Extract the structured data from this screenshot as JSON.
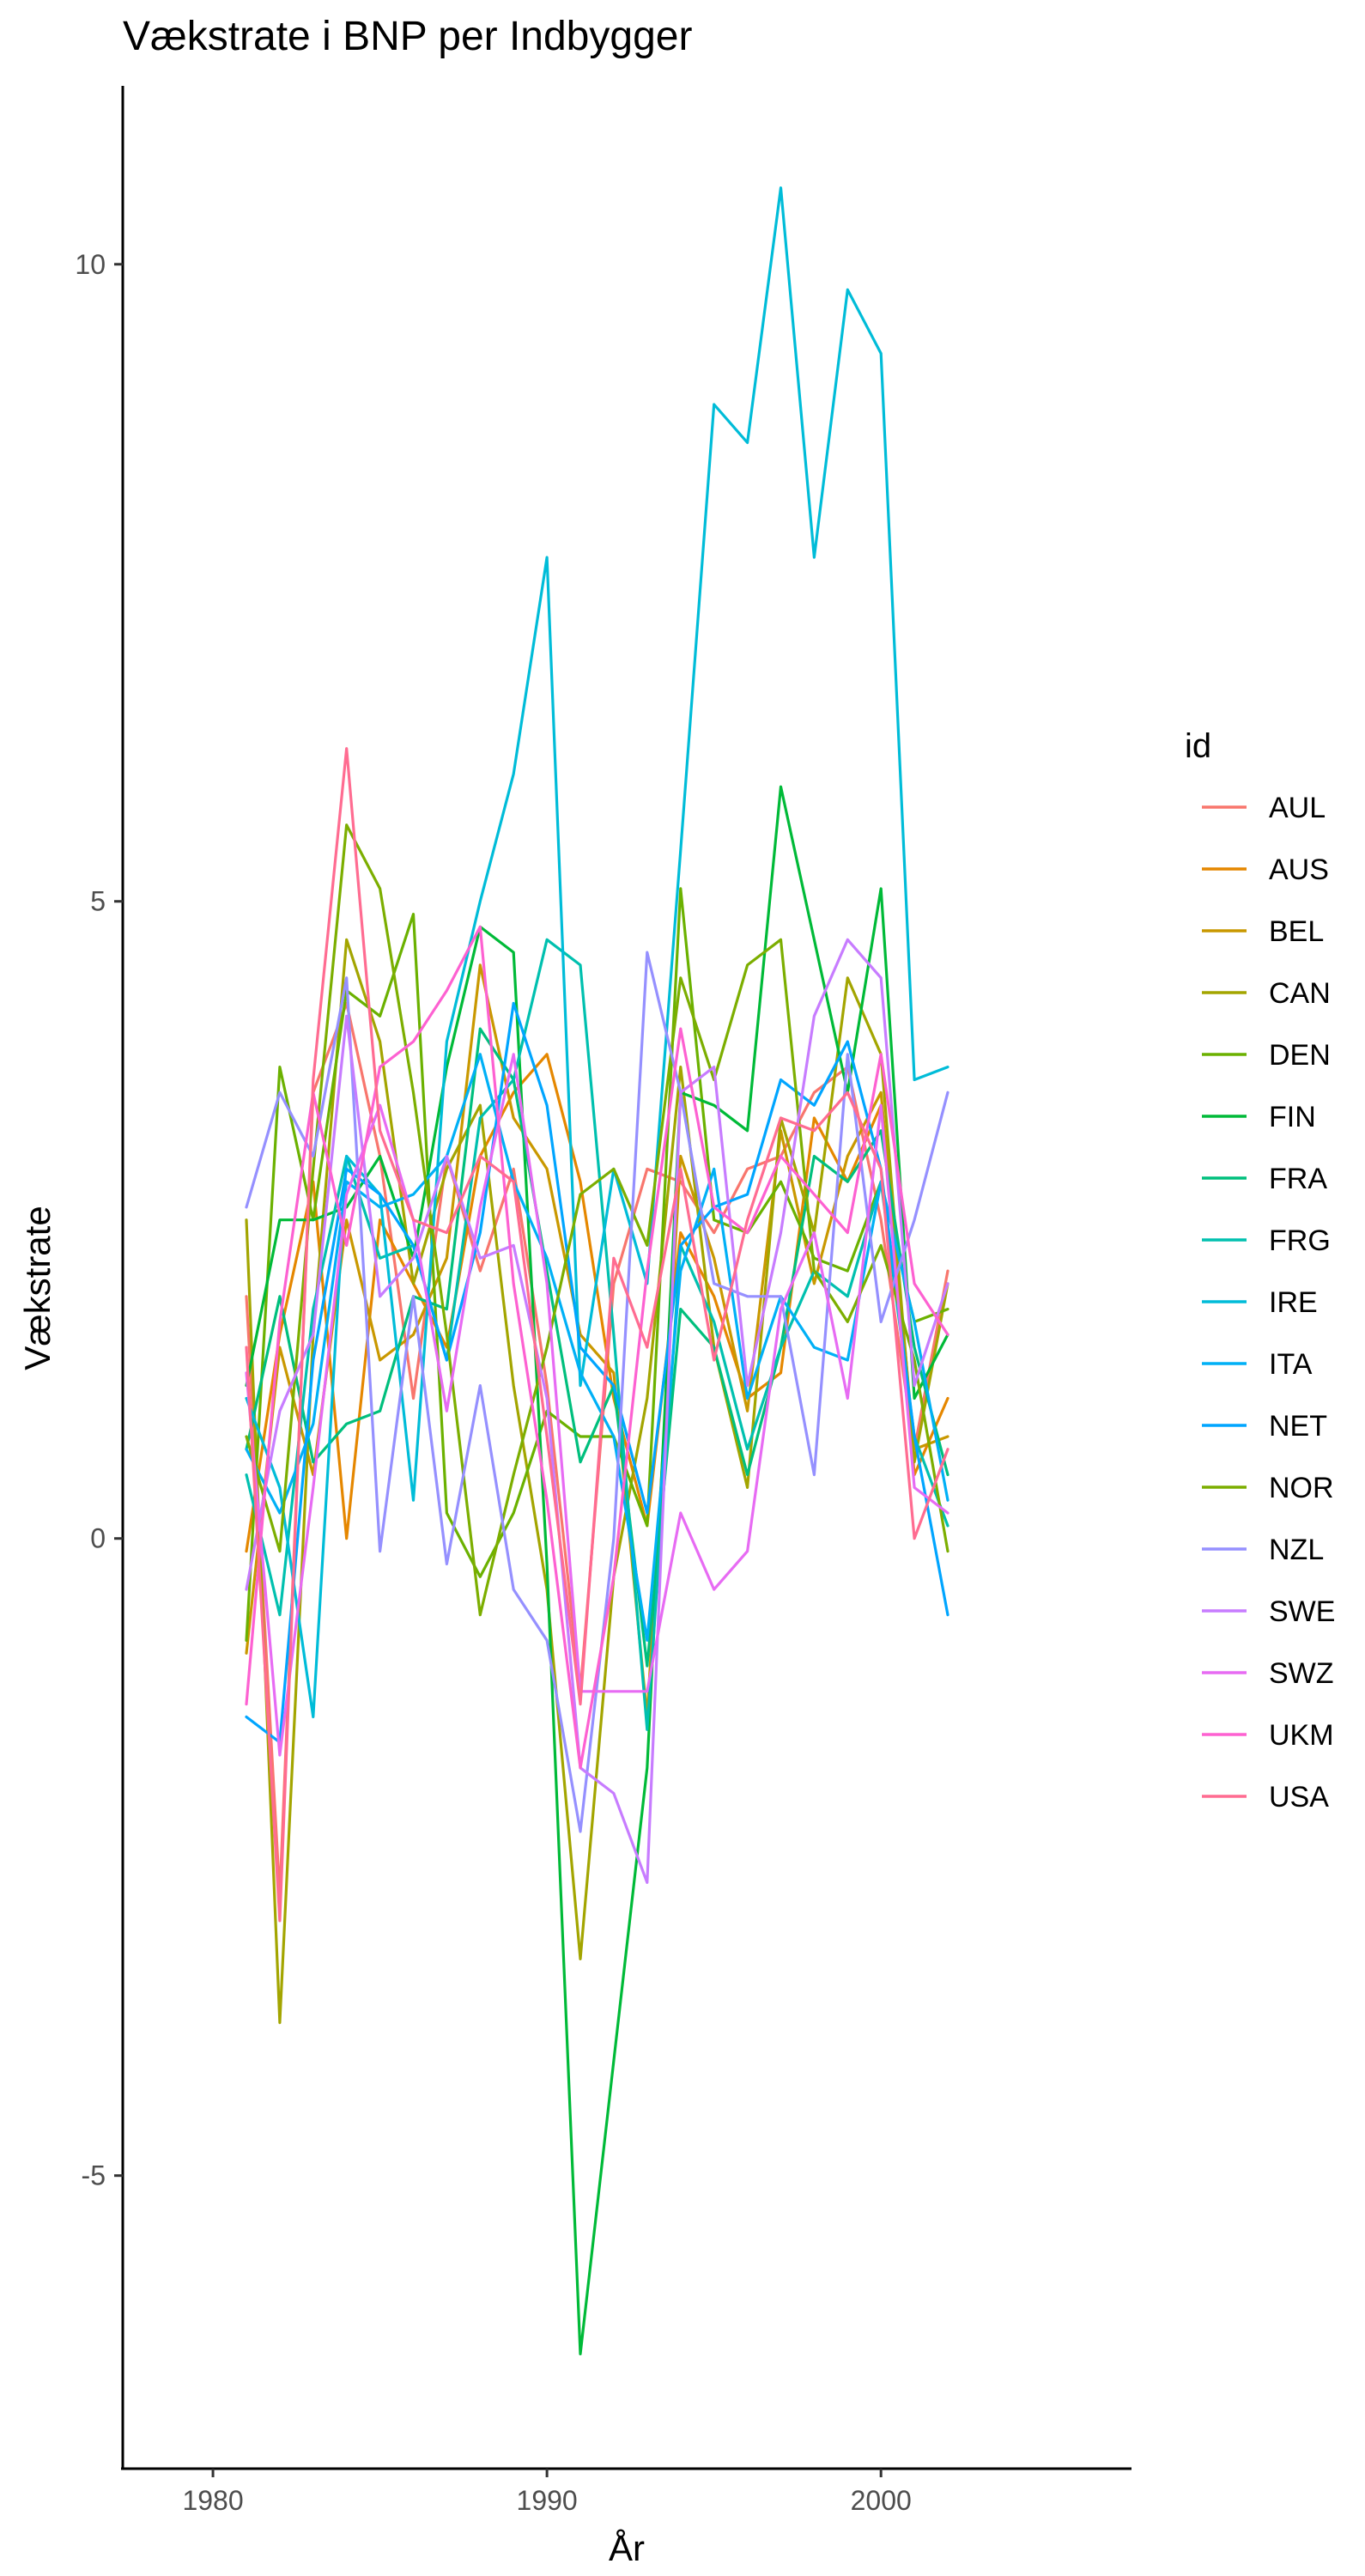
{
  "chart_data": {
    "type": "line",
    "title": "Vækstrate i BNP per Indbygger",
    "xlabel": "År",
    "ylabel": "Vækstrate",
    "xlim": [
      1977.3,
      2007.5
    ],
    "ylim": [
      -7.3,
      11.4
    ],
    "x_ticks": [
      1980,
      1990,
      2000
    ],
    "x_tick_labels": [
      "1980",
      "1990",
      "2000"
    ],
    "y_ticks": [
      -5,
      0,
      5,
      10
    ],
    "y_tick_labels": [
      "-5",
      "0",
      "5",
      "10"
    ],
    "grid": false,
    "legend": {
      "title": "id",
      "position": "right"
    },
    "x": [
      1981,
      1982,
      1983,
      1984,
      1985,
      1986,
      1987,
      1988,
      1989,
      1990,
      1991,
      1992,
      1993,
      1994,
      1995,
      1996,
      1997,
      1998,
      1999,
      2000,
      2001,
      2002
    ],
    "series": [
      {
        "name": "AUL",
        "color": "#F8766D",
        "values": [
          1.9,
          -2.8,
          3.5,
          4.2,
          3.0,
          1.1,
          3.0,
          2.1,
          2.9,
          1.2,
          -1.2,
          2.0,
          2.9,
          2.8,
          2.4,
          2.9,
          3.0,
          3.5,
          3.7,
          2.5,
          0.7,
          2.1
        ]
      },
      {
        "name": "AUS",
        "color": "#E58700",
        "values": [
          -0.1,
          1.6,
          2.8,
          0.0,
          2.5,
          2.0,
          1.5,
          3.0,
          3.5,
          3.8,
          2.8,
          1.1,
          0.1,
          2.4,
          1.9,
          1.1,
          1.3,
          3.3,
          2.8,
          3.4,
          0.5,
          1.1
        ]
      },
      {
        "name": "BEL",
        "color": "#C99800",
        "values": [
          -0.9,
          1.5,
          0.5,
          2.5,
          1.4,
          1.6,
          2.2,
          4.5,
          3.3,
          2.9,
          1.6,
          1.3,
          -1.4,
          3.0,
          2.2,
          1.0,
          3.2,
          2.0,
          3.0,
          3.5,
          0.7,
          0.8
        ]
      },
      {
        "name": "CAN",
        "color": "#A3A500",
        "values": [
          2.5,
          -3.8,
          1.6,
          4.7,
          3.9,
          2.0,
          2.9,
          3.4,
          1.2,
          -0.4,
          -3.3,
          -0.3,
          1.1,
          3.7,
          1.5,
          0.4,
          3.3,
          2.4,
          4.4,
          3.8,
          0.6,
          2.0
        ]
      },
      {
        "name": "DEN",
        "color": "#6BB100",
        "values": [
          -0.8,
          3.7,
          2.5,
          4.3,
          4.1,
          4.9,
          0.2,
          -0.3,
          0.2,
          1.0,
          0.8,
          0.8,
          0.1,
          5.1,
          2.5,
          2.4,
          2.8,
          2.2,
          2.1,
          2.8,
          1.7,
          1.8
        ]
      },
      {
        "name": "FIN",
        "color": "#00BA38",
        "values": [
          1.2,
          2.5,
          2.5,
          2.6,
          3.0,
          2.2,
          3.7,
          4.8,
          4.6,
          -0.2,
          -6.4,
          -4.1,
          -1.8,
          3.5,
          3.4,
          3.2,
          5.9,
          4.7,
          3.5,
          5.1,
          1.1,
          1.6
        ]
      },
      {
        "name": "FRA",
        "color": "#00BF7D",
        "values": [
          0.7,
          1.9,
          0.6,
          0.9,
          1.0,
          1.9,
          1.8,
          4.0,
          3.6,
          2.1,
          0.6,
          1.2,
          -1.0,
          1.8,
          1.5,
          0.5,
          1.5,
          3.0,
          2.8,
          3.2,
          1.5,
          0.5
        ]
      },
      {
        "name": "FRG",
        "color": "#00C0AF",
        "values": [
          0.5,
          -0.6,
          1.8,
          3.0,
          2.2,
          2.3,
          1.4,
          3.3,
          3.6,
          4.7,
          4.5,
          1.6,
          -1.5,
          2.3,
          1.7,
          0.7,
          1.5,
          2.1,
          1.9,
          2.8,
          0.8,
          0.1
        ]
      },
      {
        "name": "IRE",
        "color": "#00BCD8",
        "values": [
          1.1,
          0.4,
          -1.4,
          3.0,
          2.7,
          0.3,
          3.9,
          5.0,
          6.0,
          7.7,
          1.2,
          2.9,
          2.0,
          5.4,
          8.9,
          8.6,
          10.6,
          7.7,
          9.8,
          9.3,
          3.6,
          3.7
        ]
      },
      {
        "name": "ITA",
        "color": "#00B0F6",
        "values": [
          0.7,
          0.2,
          0.9,
          2.8,
          2.6,
          2.7,
          3.0,
          3.8,
          2.8,
          2.2,
          1.3,
          0.8,
          -0.8,
          2.1,
          2.9,
          1.1,
          1.9,
          1.5,
          1.4,
          2.8,
          1.7,
          0.3
        ]
      },
      {
        "name": "NET",
        "color": "#00A5FF",
        "values": [
          -1.4,
          -1.6,
          1.4,
          2.9,
          2.7,
          2.3,
          1.4,
          2.4,
          4.2,
          3.4,
          1.5,
          1.2,
          0.2,
          2.3,
          2.6,
          2.7,
          3.6,
          3.4,
          3.9,
          2.9,
          0.8,
          -0.6
        ]
      },
      {
        "name": "NOR",
        "color": "#7CAE00",
        "values": [
          0.8,
          -0.1,
          2.9,
          5.6,
          5.1,
          3.5,
          1.6,
          -0.6,
          0.5,
          1.5,
          2.7,
          2.9,
          2.3,
          4.4,
          3.6,
          4.5,
          4.7,
          2.1,
          1.7,
          2.3,
          1.4,
          -0.1
        ]
      },
      {
        "name": "NZL",
        "color": "#9590FF",
        "values": [
          2.6,
          3.5,
          3.0,
          4.4,
          -0.1,
          1.9,
          -0.2,
          1.2,
          -0.4,
          -0.8,
          -2.3,
          0.0,
          4.6,
          3.5,
          2.0,
          1.9,
          1.9,
          0.5,
          3.8,
          1.7,
          2.5,
          3.5
        ]
      },
      {
        "name": "SWE",
        "color": "#C77CFF",
        "values": [
          -0.4,
          1.0,
          1.6,
          4.1,
          1.9,
          2.2,
          3.0,
          2.2,
          2.3,
          1.1,
          -1.8,
          -2.0,
          -2.7,
          3.5,
          3.7,
          1.2,
          2.4,
          4.1,
          4.7,
          4.4,
          1.2,
          2.0
        ]
      },
      {
        "name": "SWZ",
        "color": "#E76BF3",
        "values": [
          1.3,
          -1.7,
          0.4,
          2.7,
          3.4,
          2.5,
          1.0,
          2.6,
          3.8,
          2.0,
          -1.2,
          -1.2,
          -1.2,
          0.2,
          -0.4,
          -0.1,
          1.8,
          2.4,
          1.1,
          3.4,
          0.4,
          0.2
        ]
      },
      {
        "name": "UKM",
        "color": "#FD61D1",
        "values": [
          -1.3,
          1.7,
          3.5,
          2.3,
          3.7,
          3.9,
          4.3,
          4.8,
          2.0,
          0.3,
          -1.8,
          -0.3,
          2.1,
          4.0,
          2.6,
          2.4,
          3.0,
          2.7,
          2.4,
          3.8,
          2.0,
          1.6
        ]
      },
      {
        "name": "USA",
        "color": "#FF6C91",
        "values": [
          1.5,
          -3.0,
          3.6,
          6.2,
          3.2,
          2.5,
          2.4,
          3.0,
          2.8,
          0.8,
          -1.3,
          2.2,
          1.5,
          2.9,
          1.4,
          2.5,
          3.3,
          3.2,
          3.5,
          2.9,
          0.0,
          0.7
        ]
      }
    ]
  }
}
